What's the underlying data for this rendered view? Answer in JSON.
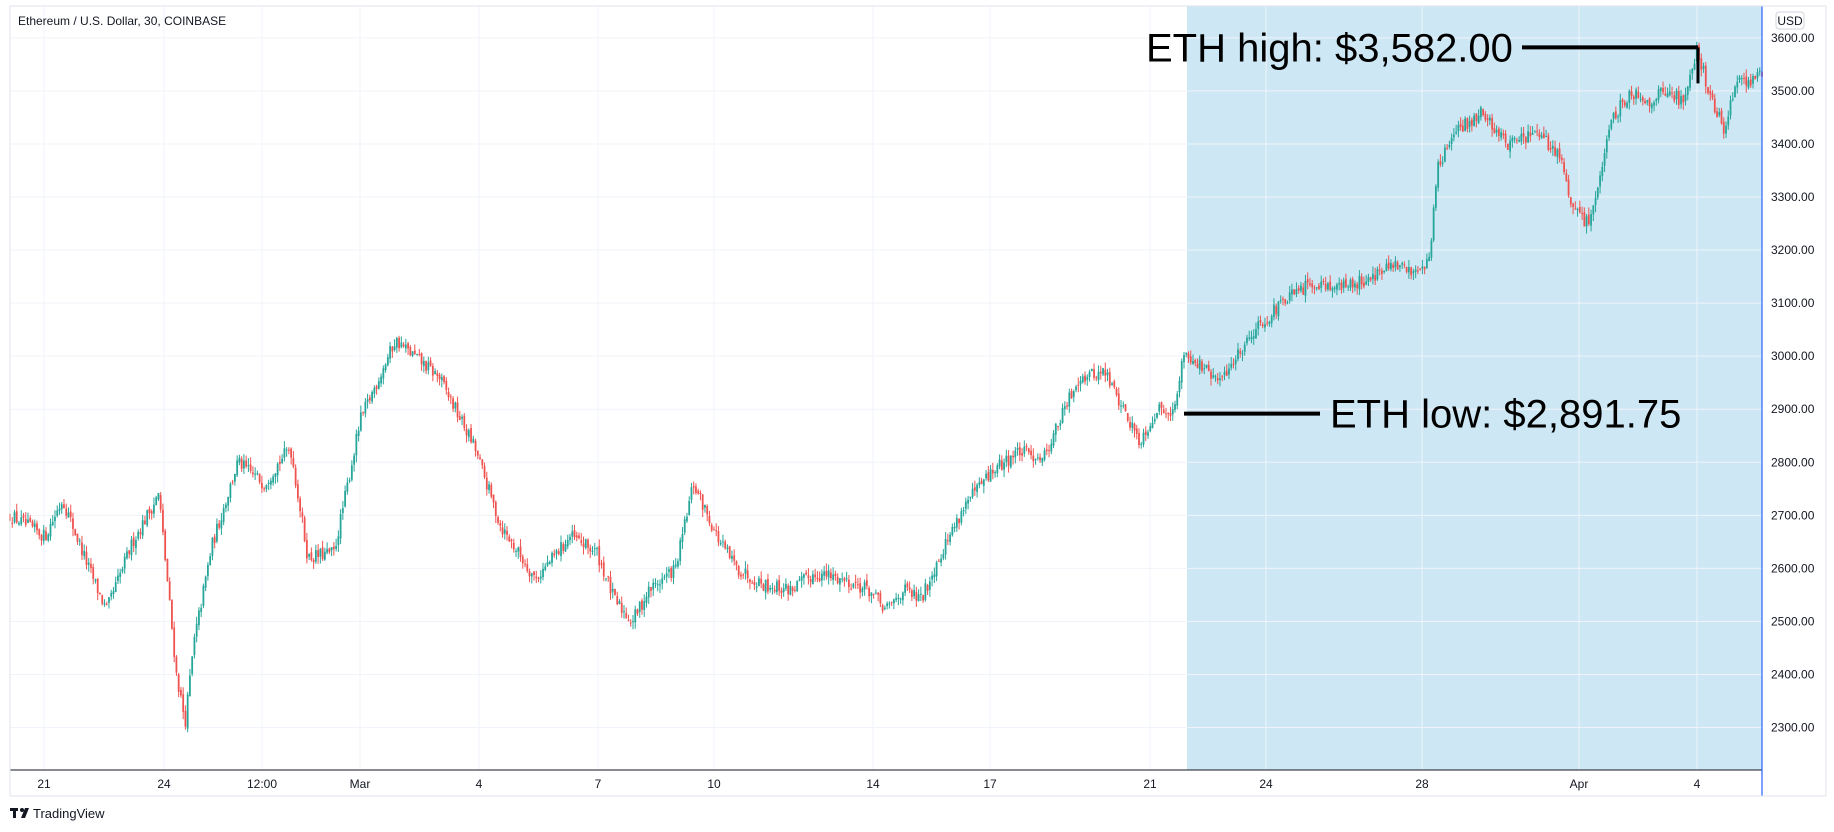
{
  "chart_data": {
    "type": "candlestick",
    "title": "Ethereum / U.S. Dollar, 30, COINBASE",
    "currency": "USD",
    "brand": "TradingView",
    "colors": {
      "up": "#26a69a",
      "down": "#ef5350",
      "highlight": "#cde8f4",
      "annotation": "#000000"
    },
    "ylim": [
      2220,
      3660
    ],
    "y_ticks": [
      "3600.00",
      "3500.00",
      "3400.00",
      "3300.00",
      "3200.00",
      "3100.00",
      "3000.00",
      "2900.00",
      "2800.00",
      "2700.00",
      "2600.00",
      "2500.00",
      "2400.00",
      "2300.00"
    ],
    "x_ticks": [
      "21",
      "24",
      "12:00",
      "Mar",
      "4",
      "7",
      "10",
      "14",
      "17",
      "21",
      "24",
      "28",
      "Apr",
      "4"
    ],
    "grid": true,
    "highlight_region": {
      "from_label": "21",
      "to_label": "end",
      "description": "shaded region"
    },
    "path_points": [
      [
        0,
        2700
      ],
      [
        0.02,
        2660
      ],
      [
        0.03,
        2730
      ],
      [
        0.045,
        2600
      ],
      [
        0.055,
        2520
      ],
      [
        0.07,
        2650
      ],
      [
        0.085,
        2740
      ],
      [
        0.095,
        2400
      ],
      [
        0.1,
        2310
      ],
      [
        0.105,
        2460
      ],
      [
        0.115,
        2640
      ],
      [
        0.13,
        2800
      ],
      [
        0.145,
        2760
      ],
      [
        0.16,
        2830
      ],
      [
        0.17,
        2620
      ],
      [
        0.185,
        2630
      ],
      [
        0.2,
        2880
      ],
      [
        0.22,
        3030
      ],
      [
        0.245,
        2960
      ],
      [
        0.265,
        2830
      ],
      [
        0.28,
        2680
      ],
      [
        0.3,
        2580
      ],
      [
        0.32,
        2660
      ],
      [
        0.335,
        2630
      ],
      [
        0.345,
        2540
      ],
      [
        0.355,
        2500
      ],
      [
        0.365,
        2560
      ],
      [
        0.38,
        2600
      ],
      [
        0.39,
        2760
      ],
      [
        0.405,
        2650
      ],
      [
        0.415,
        2600
      ],
      [
        0.43,
        2570
      ],
      [
        0.445,
        2560
      ],
      [
        0.46,
        2590
      ],
      [
        0.475,
        2580
      ],
      [
        0.49,
        2560
      ],
      [
        0.5,
        2520
      ],
      [
        0.51,
        2560
      ],
      [
        0.52,
        2540
      ],
      [
        0.53,
        2620
      ],
      [
        0.545,
        2720
      ],
      [
        0.56,
        2780
      ],
      [
        0.575,
        2820
      ],
      [
        0.59,
        2810
      ],
      [
        0.61,
        2960
      ],
      [
        0.625,
        2970
      ],
      [
        0.64,
        2870
      ],
      [
        0.645,
        2840
      ],
      [
        0.655,
        2900
      ],
      [
        0.665,
        2900
      ],
      [
        0.67,
        3010
      ],
      [
        0.69,
        2950
      ],
      [
        0.71,
        3050
      ],
      [
        0.73,
        3110
      ],
      [
        0.745,
        3140
      ],
      [
        0.76,
        3130
      ],
      [
        0.77,
        3140
      ],
      [
        0.79,
        3170
      ],
      [
        0.8,
        3160
      ],
      [
        0.81,
        3180
      ],
      [
        0.815,
        3360
      ],
      [
        0.825,
        3420
      ],
      [
        0.84,
        3460
      ],
      [
        0.855,
        3400
      ],
      [
        0.87,
        3420
      ],
      [
        0.885,
        3380
      ],
      [
        0.89,
        3290
      ],
      [
        0.9,
        3250
      ],
      [
        0.905,
        3300
      ],
      [
        0.915,
        3450
      ],
      [
        0.925,
        3500
      ],
      [
        0.935,
        3480
      ],
      [
        0.945,
        3500
      ],
      [
        0.955,
        3480
      ],
      [
        0.963,
        3582
      ],
      [
        0.97,
        3490
      ],
      [
        0.978,
        3430
      ],
      [
        0.985,
        3510
      ],
      [
        1.0,
        3530
      ]
    ],
    "annotations": [
      {
        "label": "ETH high: $3,582.00",
        "value": 3582.0
      },
      {
        "label": "ETH low: $2,891.75",
        "value": 2891.75
      }
    ]
  }
}
